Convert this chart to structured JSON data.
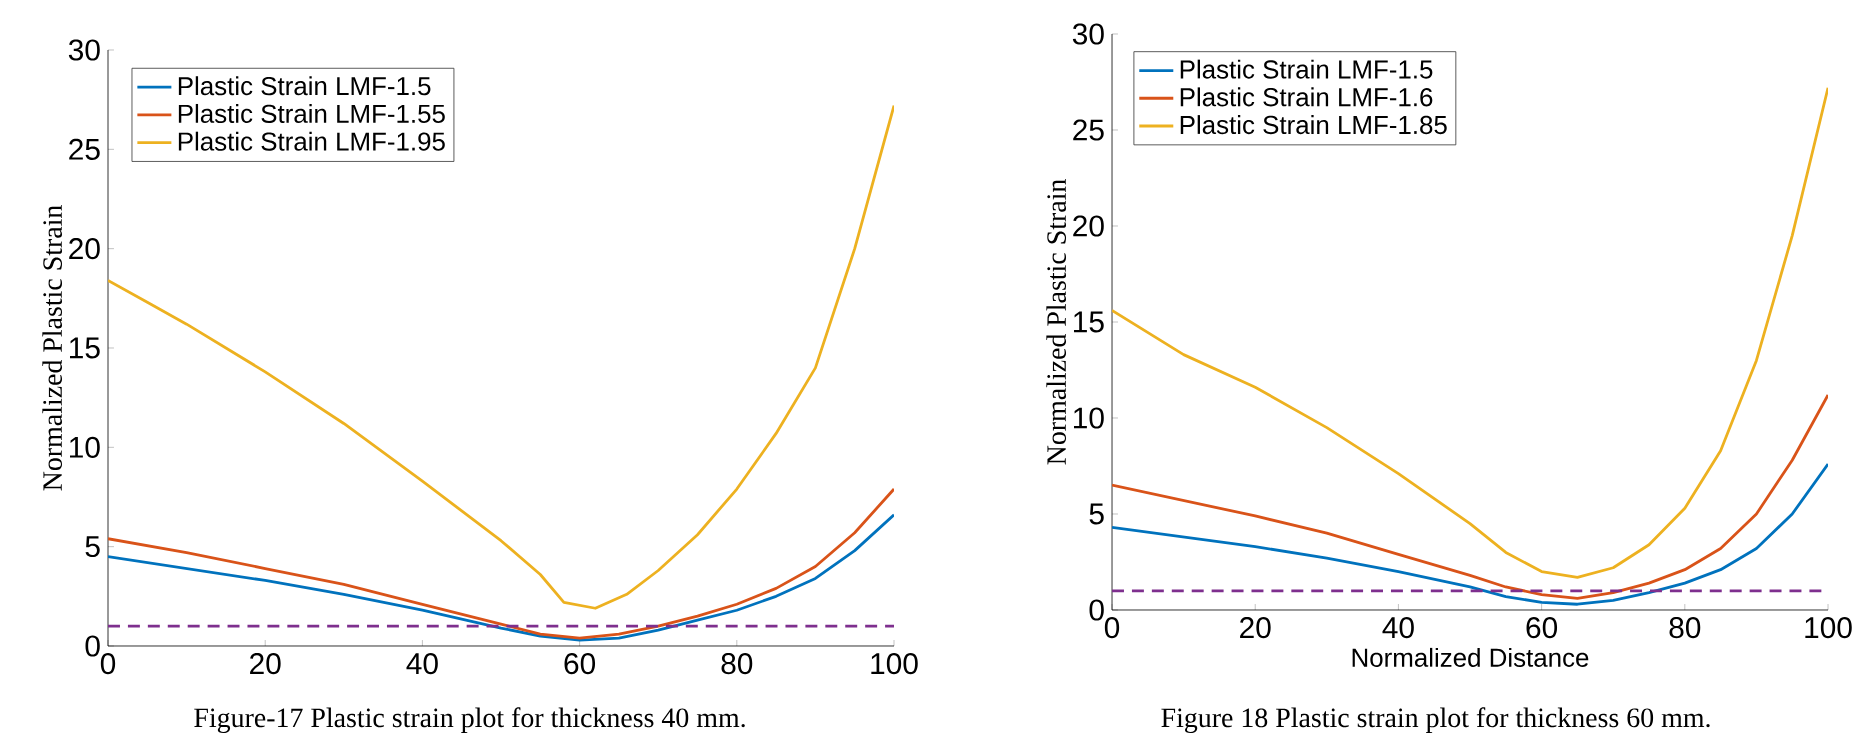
{
  "chart_data": [
    {
      "type": "line",
      "ylabel": "Normalized Plastic Strain",
      "annotations": [
        "Figure-17 Plastic strain plot for thickness 40 mm."
      ],
      "x": [
        0,
        10,
        20,
        30,
        40,
        50,
        55,
        60,
        65,
        70,
        75,
        80,
        85,
        90,
        95,
        100
      ],
      "series": [
        {
          "name": "Plastic Strain LMF-1.5",
          "color": "#0072bd",
          "values": [
            4.5,
            3.9,
            3.3,
            2.6,
            1.8,
            0.9,
            0.5,
            0.3,
            0.4,
            0.8,
            1.3,
            1.8,
            2.5,
            3.4,
            4.8,
            6.6
          ]
        },
        {
          "name": "Plastic Strain LMF-1.55",
          "color": "#d95319",
          "values": [
            5.4,
            4.7,
            3.9,
            3.1,
            2.1,
            1.1,
            0.6,
            0.4,
            0.6,
            1.0,
            1.5,
            2.1,
            2.9,
            4.0,
            5.7,
            7.9
          ]
        },
        {
          "name": "Plastic Strain LMF-1.95",
          "color": "#edb120",
          "x": [
            0,
            5,
            10,
            20,
            30,
            40,
            45,
            50,
            55,
            58,
            62,
            66,
            70,
            75,
            80,
            85,
            90,
            95,
            100
          ],
          "values": [
            18.4,
            17.3,
            16.2,
            13.8,
            11.2,
            8.3,
            6.8,
            5.3,
            3.6,
            2.2,
            1.9,
            2.6,
            3.8,
            5.6,
            7.9,
            10.7,
            14.0,
            20.0,
            27.2
          ]
        }
      ],
      "ref_lines": [
        {
          "axis": "y",
          "value": 1,
          "color": "#7e2f8e",
          "line_style": "dashed"
        }
      ],
      "xlim": [
        0,
        100
      ],
      "xticks": [
        0,
        20,
        40,
        60,
        80,
        100
      ],
      "ylim": [
        0,
        30
      ],
      "yticks": [
        0,
        5,
        10,
        15,
        20,
        25,
        30
      ],
      "legend": "top left",
      "line_style": "solid"
    },
    {
      "type": "line",
      "xlabel": "Normalized Distance",
      "ylabel": "Normalized Plastic Strain",
      "annotations": [
        "Figure 18 Plastic strain plot for thickness 60 mm."
      ],
      "x": [
        0,
        10,
        20,
        30,
        40,
        50,
        55,
        60,
        65,
        70,
        75,
        80,
        85,
        90,
        95,
        100
      ],
      "series": [
        {
          "name": "Plastic Strain LMF-1.5",
          "color": "#0072bd",
          "values": [
            4.3,
            3.8,
            3.3,
            2.7,
            2.0,
            1.2,
            0.7,
            0.4,
            0.3,
            0.5,
            0.9,
            1.4,
            2.1,
            3.2,
            5.0,
            7.6
          ]
        },
        {
          "name": "Plastic Strain LMF-1.6",
          "color": "#d95319",
          "values": [
            6.5,
            5.7,
            4.9,
            4.0,
            2.9,
            1.8,
            1.2,
            0.8,
            0.6,
            0.9,
            1.4,
            2.1,
            3.2,
            5.0,
            7.8,
            11.2
          ]
        },
        {
          "name": "Plastic Strain LMF-1.85",
          "color": "#edb120",
          "values": [
            15.6,
            13.3,
            11.6,
            9.5,
            7.1,
            4.5,
            3.0,
            2.0,
            1.7,
            2.2,
            3.4,
            5.3,
            8.3,
            13.0,
            19.5,
            27.2
          ]
        }
      ],
      "ref_lines": [
        {
          "axis": "y",
          "value": 1,
          "color": "#7e2f8e",
          "line_style": "dashed"
        }
      ],
      "xlim": [
        0,
        100
      ],
      "xticks": [
        0,
        20,
        40,
        60,
        80,
        100
      ],
      "ylim": [
        0,
        30
      ],
      "yticks": [
        0,
        5,
        10,
        15,
        20,
        25,
        30
      ],
      "legend": "top left",
      "line_style": "solid"
    }
  ]
}
